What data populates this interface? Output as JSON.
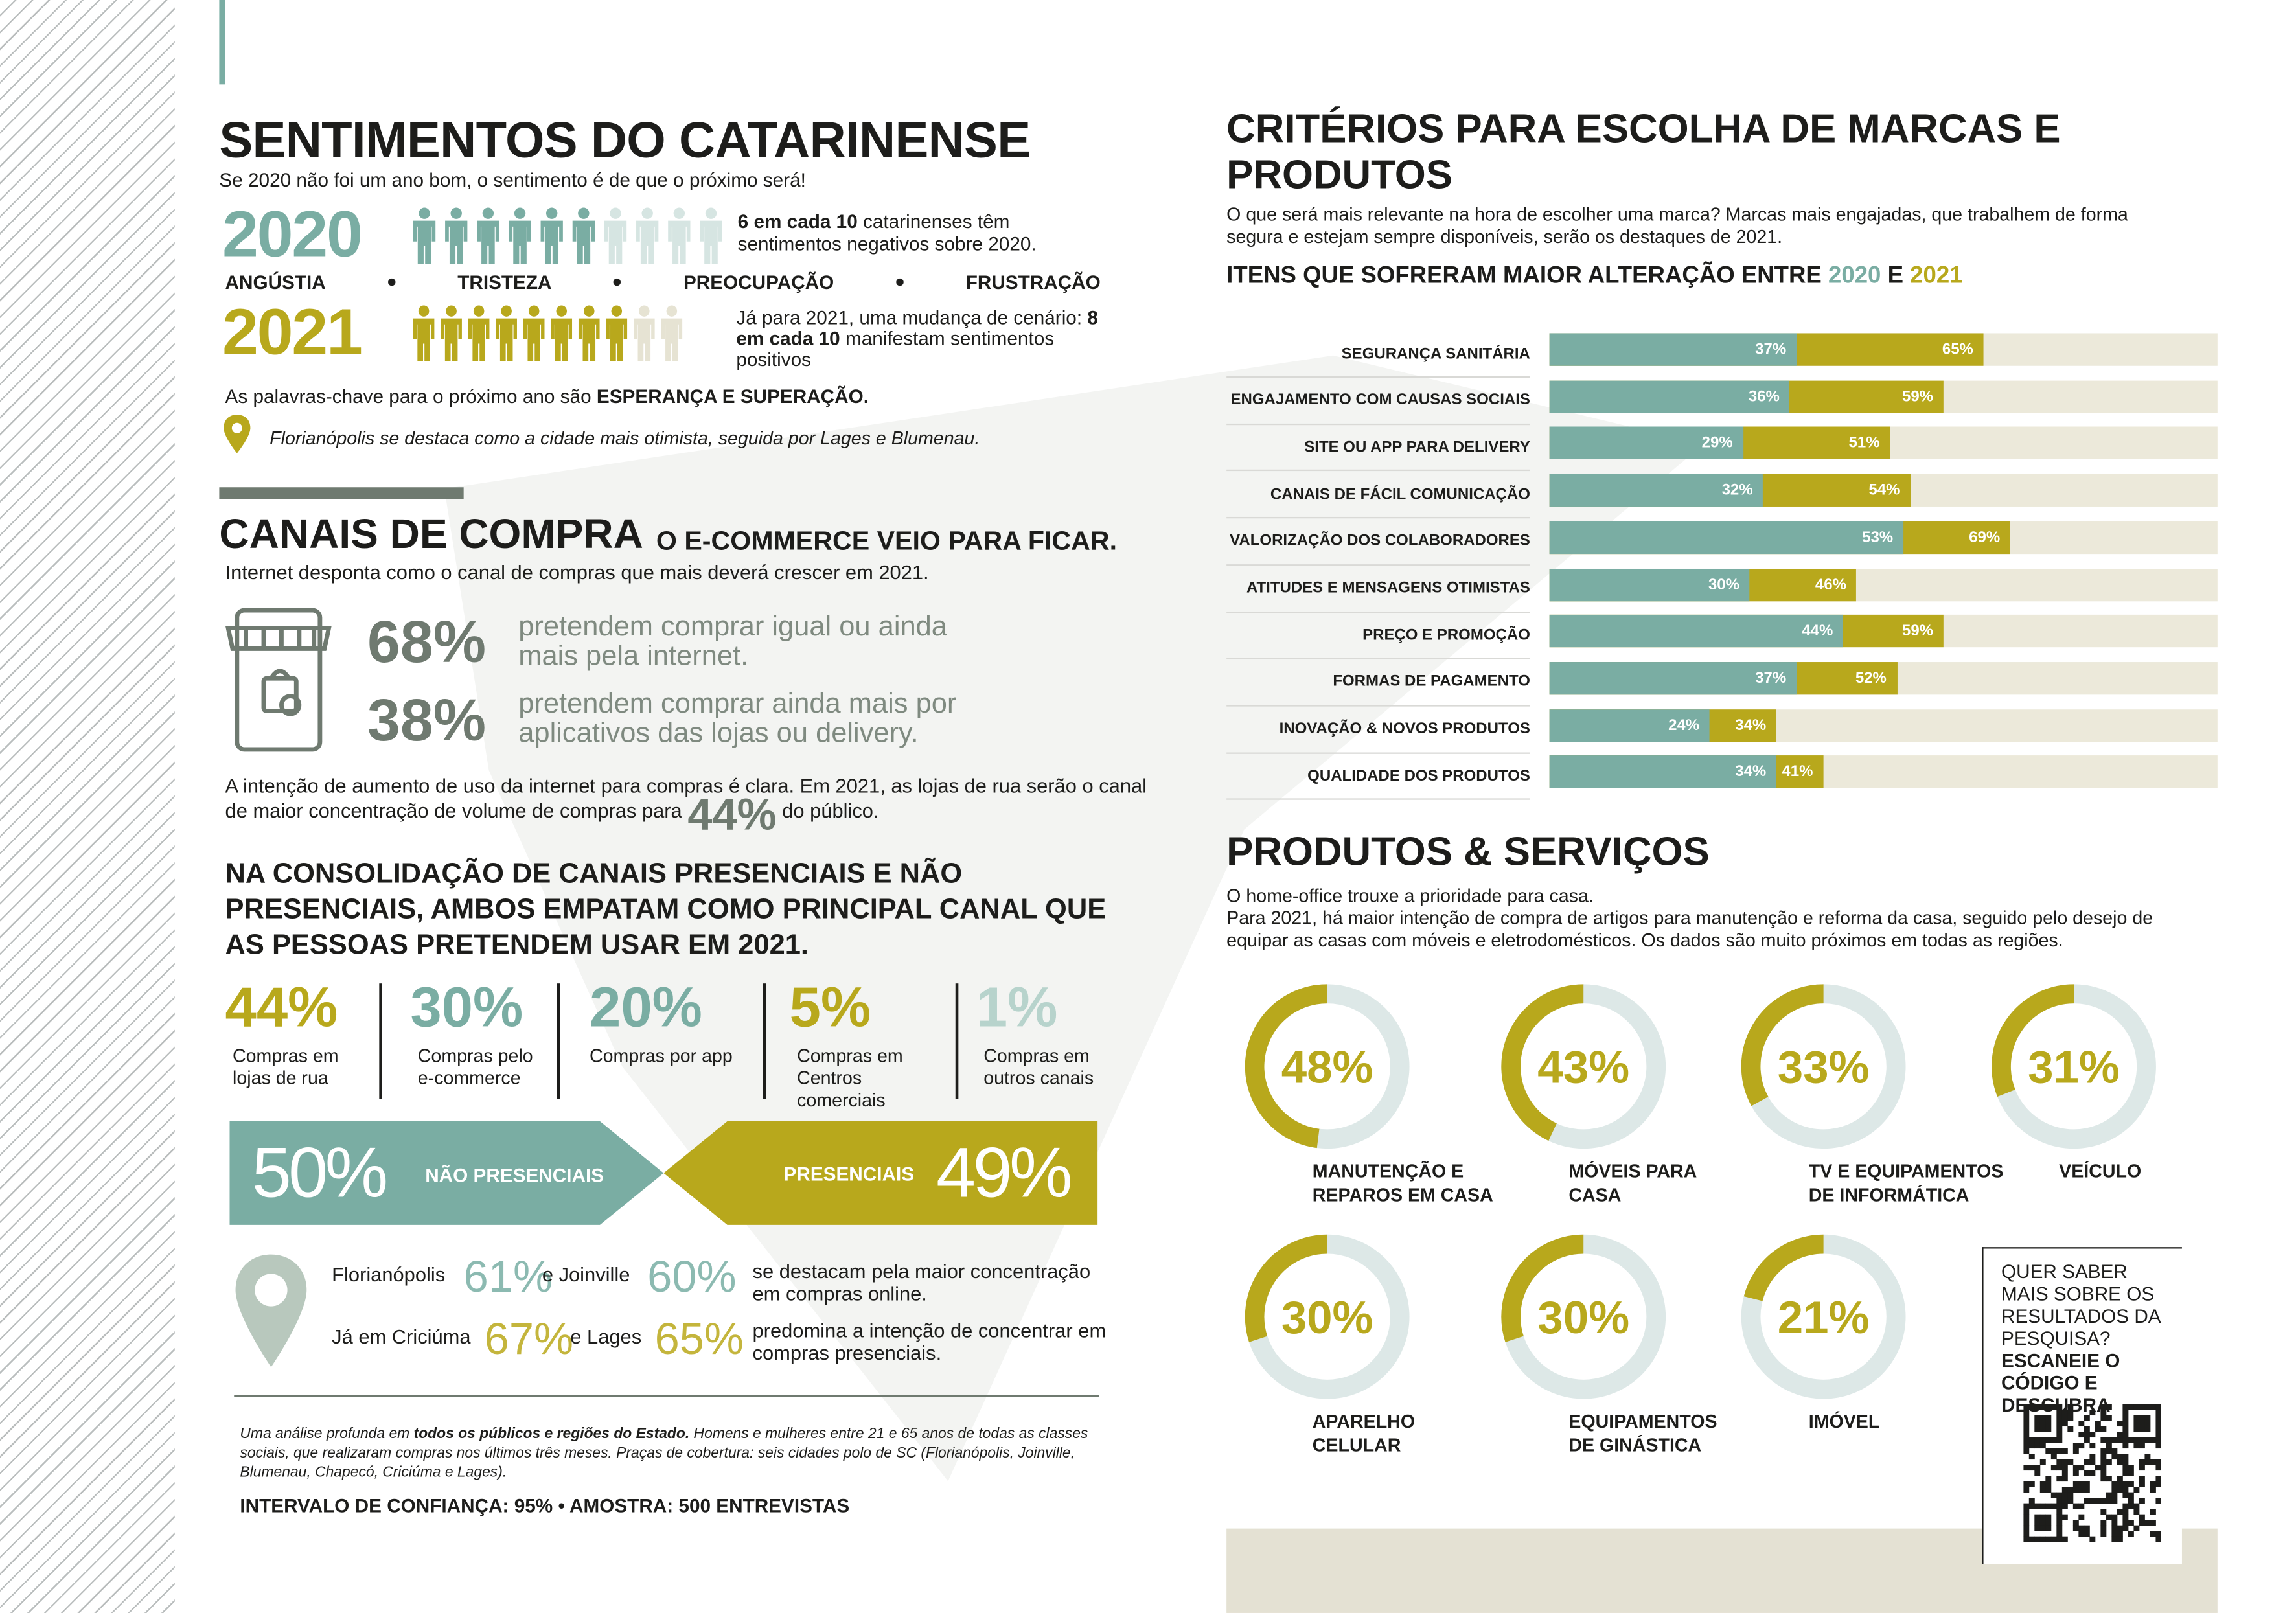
{
  "sentimentos": {
    "title": "SENTIMENTOS DO CATARINENSE",
    "subtitle": "Se 2020 não foi um ano bom, o sentimento é de que o próximo será!",
    "rows": [
      {
        "year": "2020",
        "color": "#7aada3",
        "icons_filled": 6,
        "icons_total": 10,
        "text_bold": "6 em cada 10",
        "text": "catarinenses têm sentimentos negativos sobre 2020."
      },
      {
        "year": "2021",
        "color": "#b8a81c",
        "icons_filled": 8,
        "icons_total": 10,
        "text_pre": "Já para 2021, uma mudança de cenário:",
        "text_bold": "8 em cada 10",
        "text": "manifestam sentimentos positivos"
      }
    ],
    "feelings": [
      "ANGÚSTIA",
      "TRISTEZA",
      "PREOCUPAÇÃO",
      "FRUSTRAÇÃO"
    ],
    "keywords_text": "As palavras-chave para o próximo ano são",
    "keywords_bold": "ESPERANÇA E SUPERAÇÃO.",
    "city_note": "Florianópolis se destaca como a cidade mais otimista, seguida por Lages e Blumenau."
  },
  "canais": {
    "title": "CANAIS DE COMPRA",
    "tagline": "O E-COMMERCE VEIO PARA FICAR.",
    "subtitle": "Internet desponta como o canal de compras que mais deverá crescer em 2021.",
    "stats": [
      {
        "value": "68%",
        "text": "pretendem comprar igual ou ainda mais pela internet."
      },
      {
        "value": "38%",
        "text": "pretendem comprar ainda mais por aplicativos das lojas ou delivery."
      }
    ],
    "paragraph": "A intenção de aumento de uso da internet para compras é clara. Em 2021, as lojas de rua serão o canal de maior concentração de volume de compras para",
    "paragraph_value": "44%",
    "paragraph_end": "do público.",
    "headline": "NA CONSOLIDAÇÃO DE CANAIS PRESENCIAIS E NÃO PRESENCIAIS, AMBOS EMPATAM COMO PRINCIPAL CANAL QUE AS PESSOAS PRETENDEM USAR EM 2021.",
    "channels": [
      {
        "value": "44%",
        "label": "Compras em lojas de rua",
        "color": "#b8a81c"
      },
      {
        "value": "30%",
        "label": "Compras pelo e-commerce",
        "color": "#7aada3"
      },
      {
        "value": "20%",
        "label": "Compras por app",
        "color": "#7aada3"
      },
      {
        "value": "5%",
        "label": "Compras em Centros comerciais",
        "color": "#b8a81c"
      },
      {
        "value": "1%",
        "label": "Compras em outros canais",
        "color": "#b7d3cc"
      }
    ],
    "split": [
      {
        "value": "50%",
        "label": "NÃO PRESENCIAIS"
      },
      {
        "value": "49%",
        "label": "PRESENCIAIS"
      }
    ],
    "cities": [
      {
        "pre": "Florianópolis",
        "v1": "61%",
        "mid": "e Joinville",
        "v2": "60%",
        "text": "se destacam pela maior concentração em compras online."
      },
      {
        "pre": "Já em Criciúma",
        "v1": "67%",
        "mid": "e  Lages",
        "v2": "65%",
        "text": "predomina a intenção de concentrar em compras presenciais."
      }
    ],
    "footnote_pre": "Uma análise profunda em",
    "footnote_bold": "todos os públicos e regiões do Estado.",
    "footnote_post": "Homens e mulheres entre 21 e 65 anos de todas as classes sociais, que realizaram compras nos últimos três meses. Praças de cobertura: seis cidades polo de SC (Florianópolis, Joinville, Blumenau, Chapecó, Criciúma e Lages).",
    "footer": "INTERVALO DE CONFIANÇA: 95% • AMOSTRA: 500 ENTREVISTAS"
  },
  "criterios": {
    "title": "CRITÉRIOS PARA ESCOLHA DE MARCAS E PRODUTOS",
    "text": "O que será mais relevante na hora de escolher uma marca? Marcas mais engajadas, que trabalhem de forma segura e estejam sempre disponíveis, serão os destaques de 2021.",
    "chart_title": "ITENS QUE SOFRERAM MAIOR ALTERAÇÃO ENTRE",
    "chart_title_join": "E"
  },
  "produtos": {
    "title": "PRODUTOS & SERVIÇOS",
    "text": [
      "O home-office trouxe a prioridade para casa.",
      "Para 2021, há maior intenção de compra de artigos para manutenção e reforma da casa, seguido pelo desejo de equipar as casas com móveis e eletrodomésticos. Os dados são muito próximos em todas as regiões."
    ]
  },
  "qr": {
    "text": "QUER SABER MAIS SOBRE OS RESULTADOS DA PESQUISA?",
    "bold": "ESCANEIE O CÓDIGO E DESCUBRA"
  },
  "chart_data": [
    {
      "type": "bar",
      "orientation": "horizontal",
      "categories": [
        "SEGURANÇA SANITÁRIA",
        "ENGAJAMENTO COM CAUSAS SOCIAIS",
        "SITE OU APP PARA DELIVERY",
        "CANAIS DE FÁCIL COMUNICAÇÃO",
        "VALORIZAÇÃO DOS COLABORADORES",
        "ATITUDES E MENSAGENS OTIMISTAS",
        "PREÇO E PROMOÇÃO",
        "FORMAS DE PAGAMENTO",
        "INOVAÇÃO & NOVOS PRODUTOS",
        "QUALIDADE DOS PRODUTOS"
      ],
      "series": [
        {
          "name": "2020",
          "color": "#7aada3",
          "values": [
            37,
            36,
            29,
            32,
            53,
            30,
            44,
            37,
            24,
            34
          ],
          "value_labels": [
            "37%",
            "36%",
            "29%",
            "32%",
            "53%",
            "30%",
            "44%",
            "37%",
            "24%",
            "34%"
          ]
        },
        {
          "name": "2021",
          "color": "#b8a81c",
          "values": [
            65,
            59,
            51,
            54,
            69,
            46,
            59,
            52,
            34,
            41
          ],
          "value_labels": [
            "65%",
            "59%",
            "51%",
            "54%",
            "69%",
            "46%",
            "59%",
            "52%",
            "34%",
            "41%"
          ]
        }
      ],
      "xlim": [
        0,
        100
      ]
    },
    {
      "type": "donut",
      "categories": [
        "MANUTENÇÃO E REPAROS EM CASA",
        "MÓVEIS PARA CASA",
        "TV E EQUIPAMENTOS DE INFORMÁTICA",
        "VEÍCULO",
        "APARELHO CELULAR",
        "EQUIPAMENTOS DE GINÁSTICA",
        "IMÓVEL"
      ],
      "values": [
        48,
        43,
        33,
        31,
        30,
        30,
        21
      ],
      "value_labels": [
        "48%",
        "43%",
        "33%",
        "31%",
        "30%",
        "30%",
        "21%"
      ],
      "color": "#b8a81c"
    }
  ]
}
